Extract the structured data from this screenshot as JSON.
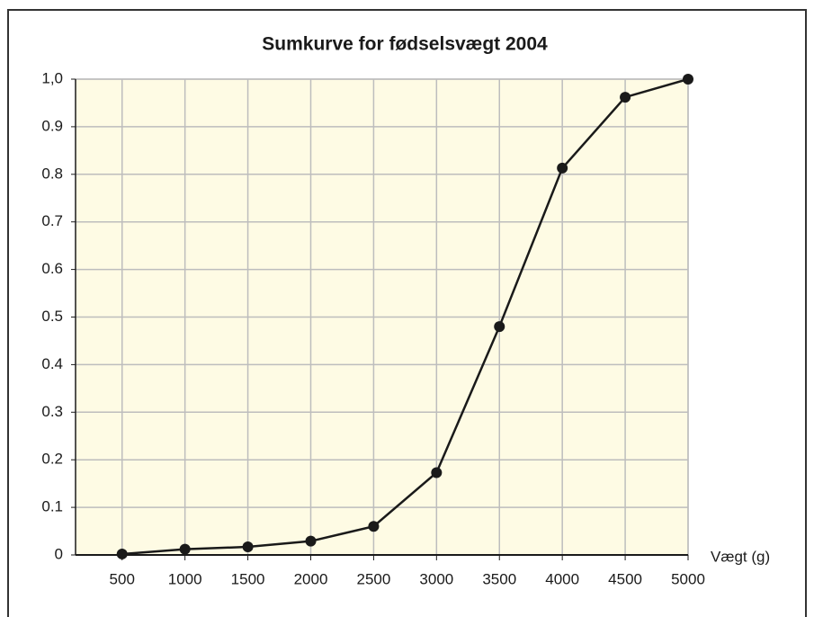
{
  "chart_data": {
    "type": "line",
    "title": "Sumkurve for fødselsvægt 2004",
    "x_label": "Vægt (g)",
    "x": [
      500,
      1000,
      1500,
      2000,
      2500,
      3000,
      3500,
      4000,
      4500,
      5000
    ],
    "series": [
      {
        "name": "Sumkurve",
        "color": "#1a1a1a",
        "values": [
          0.002,
          0.012,
          0.017,
          0.029,
          0.06,
          0.173,
          0.48,
          0.813,
          0.962,
          1.0
        ]
      }
    ],
    "xlim": [
      130,
      5000
    ],
    "xticks": [
      500,
      1000,
      1500,
      2000,
      2500,
      3000,
      3500,
      4000,
      4500,
      5000
    ],
    "ylim": [
      0,
      1
    ],
    "yticks": [
      0,
      0.1,
      0.2,
      0.3,
      0.4,
      0.5,
      0.6,
      0.7,
      0.8,
      0.9,
      {
        "value": 1,
        "label": "1,0"
      }
    ],
    "grid": true
  }
}
